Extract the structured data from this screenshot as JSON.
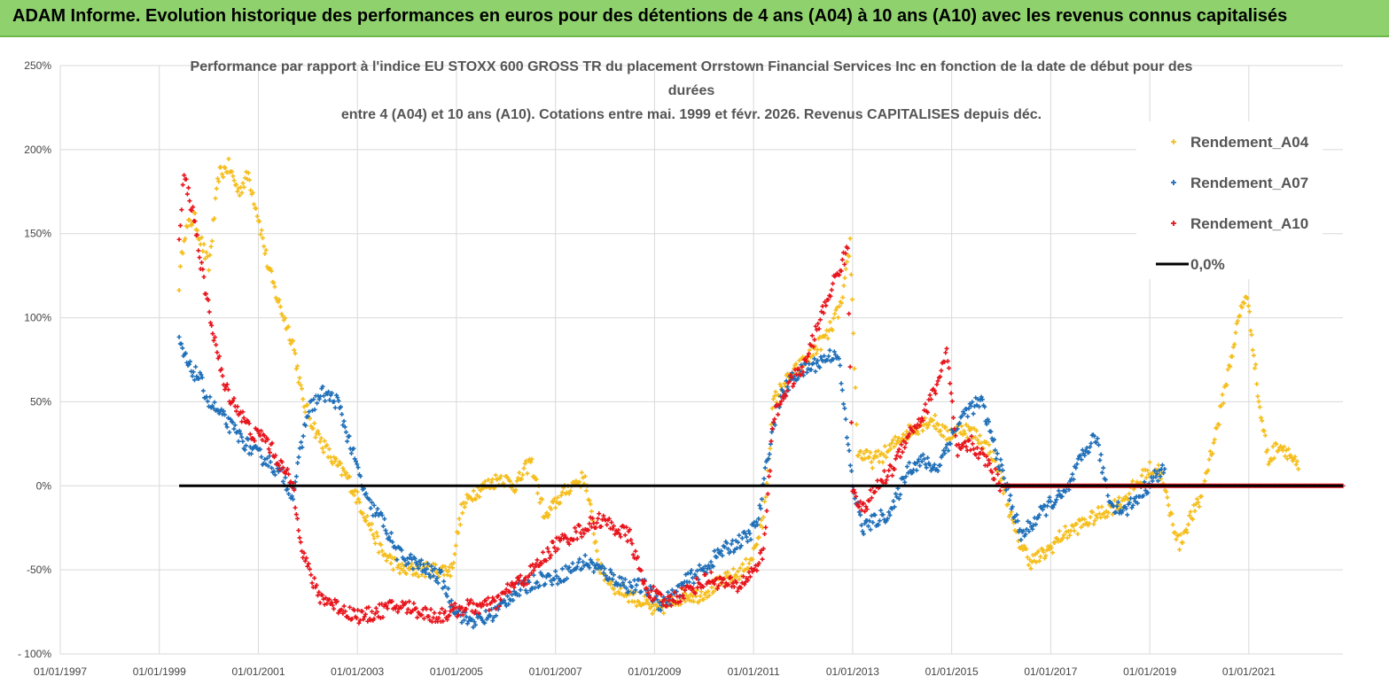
{
  "banner": {
    "title": "ADAM Informe. Evolution historique des performances en euros pour des détentions de 4 ans (A04) à 10 ans (A10) avec les revenus connus capitalisés"
  },
  "colors": {
    "A04": "#f5be1c",
    "A07": "#1f6fb8",
    "A10": "#e8141c",
    "zero": "#000000",
    "banner": "#8fd16d"
  },
  "chart_data": {
    "type": "scatter",
    "title_lines": [
      "Performance par rapport à l'indice EU STOXX 600 GROSS TR  du placement Orrstown Financial Services  Inc en fonction de la date de début pour des",
      "durées",
      "entre 4 (A04) et 10 ans (A10). Cotations entre mai. 1999 et févr. 2026. Revenus CAPITALISES depuis déc."
    ],
    "y_unit": "%",
    "ylim": [
      -100,
      250
    ],
    "y_ticks": [
      "250%",
      "200%",
      "150%",
      "100%",
      "50%",
      "0%",
      "-50%",
      "- 100%"
    ],
    "xlim": [
      1997.0,
      2022.9
    ],
    "x_ticks": [
      "01/01/1997",
      "01/01/1999",
      "01/01/2001",
      "01/01/2003",
      "01/01/2005",
      "01/01/2007",
      "01/01/2009",
      "01/01/2011",
      "01/01/2013",
      "01/01/2015",
      "01/01/2017",
      "01/01/2019",
      "01/01/2021"
    ],
    "legend": [
      "Rendement_A04",
      "Rendement_A07",
      "Rendement_A10",
      "0,0%"
    ],
    "legend_position": "top-right",
    "series": [
      {
        "name": "Rendement_A04",
        "x": [
          1999.4,
          1999.5,
          1999.7,
          1999.9,
          2000.0,
          2000.2,
          2000.4,
          2000.6,
          2000.8,
          2001.0,
          2001.2,
          2001.4,
          2001.7,
          2001.9,
          2002.2,
          2002.5,
          2002.8,
          2003.2,
          2003.5,
          2003.9,
          2004.3,
          2004.6,
          2004.9,
          2005.1,
          2005.3,
          2005.6,
          2005.9,
          2006.2,
          2006.5,
          2006.8,
          2007.0,
          2007.3,
          2007.6,
          2007.9,
          2008.2,
          2008.5,
          2008.8,
          2009.0,
          2009.3,
          2009.6,
          2009.9,
          2010.2,
          2010.5,
          2010.8,
          2011.0,
          2011.2,
          2011.4,
          2011.6,
          2011.9,
          2012.2,
          2012.5,
          2012.8,
          2012.95,
          2013.1,
          2013.4,
          2013.7,
          2014.0,
          2014.3,
          2014.6,
          2014.9,
          2015.2,
          2015.5,
          2015.8,
          2016.0,
          2016.3,
          2016.6,
          2016.9,
          2017.2,
          2017.5,
          2017.8,
          2018.1,
          2018.4,
          2018.7,
          2019.0,
          2019.2,
          2019.4,
          2019.6,
          2019.8,
          2020.0,
          2020.2,
          2020.4,
          2020.6,
          2020.8,
          2020.95,
          2021.1,
          2021.2,
          2021.4,
          2021.6,
          2021.8,
          2022.0
        ],
        "values": [
          120,
          150,
          160,
          140,
          130,
          185,
          190,
          175,
          185,
          160,
          130,
          110,
          85,
          50,
          30,
          15,
          5,
          -20,
          -40,
          -50,
          -50,
          -50,
          -50,
          -15,
          -5,
          0,
          5,
          0,
          15,
          -20,
          -10,
          0,
          5,
          -50,
          -60,
          -65,
          -70,
          -75,
          -70,
          -65,
          -65,
          -60,
          -55,
          -50,
          -40,
          -20,
          50,
          60,
          70,
          80,
          90,
          110,
          145,
          20,
          15,
          20,
          30,
          35,
          40,
          30,
          35,
          30,
          20,
          5,
          -30,
          -45,
          -40,
          -30,
          -25,
          -20,
          -15,
          -10,
          0,
          10,
          10,
          -15,
          -35,
          -20,
          -10,
          15,
          40,
          70,
          100,
          115,
          80,
          50,
          15,
          25,
          20,
          10
        ]
      },
      {
        "name": "Rendement_A07",
        "x": [
          1999.4,
          1999.6,
          1999.8,
          2000.0,
          2000.3,
          2000.6,
          2000.9,
          2001.2,
          2001.5,
          2001.7,
          2002.0,
          2002.3,
          2002.6,
          2002.9,
          2003.2,
          2003.5,
          2003.8,
          2004.1,
          2004.4,
          2004.7,
          2004.9,
          2005.2,
          2005.5,
          2005.8,
          2006.1,
          2006.4,
          2006.7,
          2007.0,
          2007.3,
          2007.6,
          2007.9,
          2008.2,
          2008.5,
          2008.8,
          2009.1,
          2009.4,
          2009.7,
          2010.0,
          2010.3,
          2010.6,
          2010.9,
          2011.1,
          2011.3,
          2011.5,
          2011.8,
          2012.1,
          2012.4,
          2012.7,
          2013.0,
          2013.2,
          2013.5,
          2013.8,
          2014.1,
          2014.4,
          2014.7,
          2015.0,
          2015.3,
          2015.6,
          2015.9,
          2016.1,
          2016.4,
          2016.7,
          2017.0,
          2017.3,
          2017.6,
          2017.9,
          2018.2,
          2018.5,
          2018.8,
          2019.1,
          2019.3
        ],
        "values": [
          85,
          70,
          65,
          50,
          40,
          30,
          20,
          15,
          5,
          -5,
          45,
          55,
          50,
          20,
          -10,
          -20,
          -40,
          -45,
          -50,
          -55,
          -70,
          -80,
          -80,
          -75,
          -65,
          -60,
          -55,
          -55,
          -50,
          -45,
          -50,
          -55,
          -60,
          -60,
          -70,
          -65,
          -55,
          -50,
          -40,
          -35,
          -30,
          -20,
          20,
          50,
          65,
          70,
          75,
          80,
          0,
          -25,
          -20,
          -15,
          10,
          15,
          10,
          30,
          45,
          50,
          20,
          0,
          -30,
          -20,
          -10,
          -5,
          15,
          30,
          -10,
          -15,
          -5,
          5,
          10
        ]
      },
      {
        "name": "Rendement_A10",
        "x": [
          1999.4,
          1999.5,
          1999.7,
          1999.9,
          2000.1,
          2000.3,
          2000.6,
          2000.9,
          2001.1,
          2001.3,
          2001.5,
          2001.7,
          2001.9,
          2002.2,
          2002.5,
          2002.8,
          2003.1,
          2003.4,
          2003.7,
          2004.0,
          2004.3,
          2004.6,
          2004.9,
          2005.2,
          2005.5,
          2005.8,
          2006.1,
          2006.4,
          2006.7,
          2007.0,
          2007.3,
          2007.6,
          2007.9,
          2008.2,
          2008.5,
          2008.8,
          2009.0,
          2009.2,
          2009.5,
          2009.8,
          2010.1,
          2010.4,
          2010.7,
          2011.0,
          2011.2,
          2011.4,
          2011.7,
          2012.0,
          2012.3,
          2012.6,
          2012.9,
          2013.0,
          2013.2,
          2013.5,
          2013.8,
          2014.1,
          2014.4,
          2014.7,
          2014.9,
          2015.1,
          2015.4,
          2015.7,
          2016.0,
          2016.5,
          2017.0,
          2017.5,
          2018.0,
          2018.5,
          2019.0,
          2019.5,
          2020.0,
          2020.5,
          2021.0,
          2021.5,
          2022.0,
          2022.5,
          2022.9
        ],
        "values": [
          145,
          185,
          160,
          120,
          90,
          60,
          45,
          30,
          30,
          20,
          10,
          0,
          -40,
          -65,
          -70,
          -75,
          -78,
          -75,
          -72,
          -72,
          -75,
          -78,
          -75,
          -72,
          -72,
          -70,
          -60,
          -55,
          -45,
          -35,
          -30,
          -25,
          -20,
          -25,
          -30,
          -60,
          -65,
          -70,
          -65,
          -60,
          -55,
          -58,
          -60,
          -50,
          -40,
          40,
          60,
          70,
          95,
          120,
          140,
          0,
          -15,
          0,
          10,
          30,
          40,
          60,
          80,
          20,
          25,
          15,
          0,
          0,
          0,
          0,
          0,
          0,
          0,
          0,
          0,
          0,
          0,
          0,
          0,
          0,
          0
        ]
      },
      {
        "name": "0,0%",
        "x": [
          1999.4,
          2022.9
        ],
        "values": [
          0,
          0
        ]
      }
    ]
  }
}
